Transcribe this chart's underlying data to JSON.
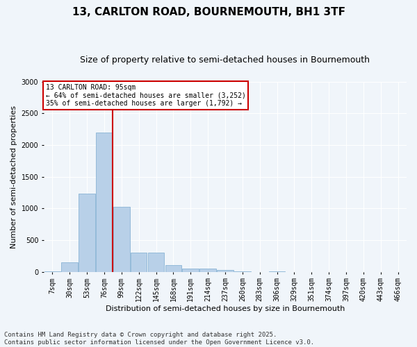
{
  "title": "13, CARLTON ROAD, BOURNEMOUTH, BH1 3TF",
  "subtitle": "Size of property relative to semi-detached houses in Bournemouth",
  "xlabel": "Distribution of semi-detached houses by size in Bournemouth",
  "ylabel": "Number of semi-detached properties",
  "categories": [
    "7sqm",
    "30sqm",
    "53sqm",
    "76sqm",
    "99sqm",
    "122sqm",
    "145sqm",
    "168sqm",
    "191sqm",
    "214sqm",
    "237sqm",
    "260sqm",
    "283sqm",
    "306sqm",
    "329sqm",
    "351sqm",
    "374sqm",
    "397sqm",
    "420sqm",
    "443sqm",
    "466sqm"
  ],
  "values": [
    10,
    150,
    1230,
    2200,
    1030,
    300,
    300,
    110,
    55,
    50,
    30,
    10,
    0,
    10,
    0,
    0,
    0,
    0,
    0,
    0,
    0
  ],
  "bar_color": "#b8d0e8",
  "bar_edge_color": "#7aaacf",
  "vline_x_index": 4,
  "vline_color": "#cc0000",
  "annotation_text": "13 CARLTON ROAD: 95sqm\n← 64% of semi-detached houses are smaller (3,252)\n35% of semi-detached houses are larger (1,792) →",
  "annotation_box_color": "#cc0000",
  "ylim": [
    0,
    3000
  ],
  "yticks": [
    0,
    500,
    1000,
    1500,
    2000,
    2500,
    3000
  ],
  "footnote": "Contains HM Land Registry data © Crown copyright and database right 2025.\nContains public sector information licensed under the Open Government Licence v3.0.",
  "background_color": "#f0f5fa",
  "grid_color": "#ffffff",
  "title_fontsize": 11,
  "subtitle_fontsize": 9,
  "label_fontsize": 8,
  "tick_fontsize": 7,
  "footnote_fontsize": 6.5
}
